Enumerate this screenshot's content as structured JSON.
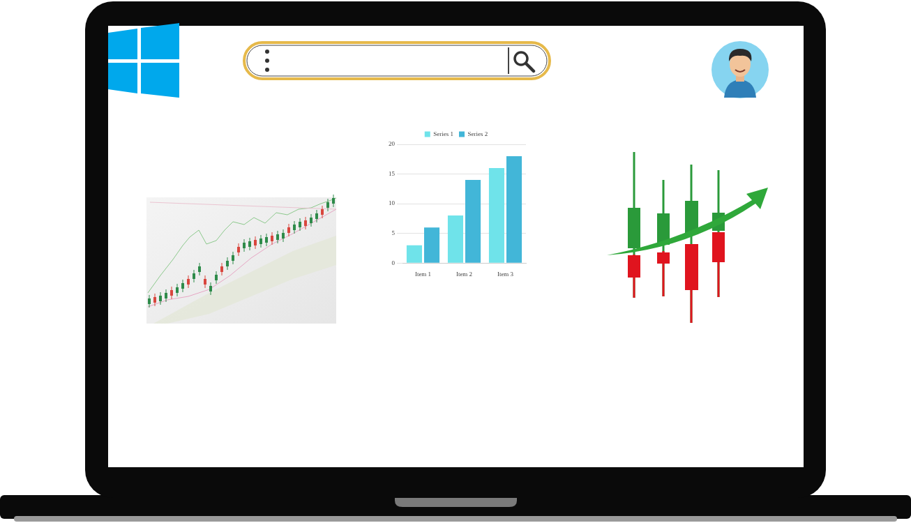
{
  "chart_data": {
    "type": "bar",
    "categories": [
      "Item 1",
      "Item 2",
      "Item 3"
    ],
    "series": [
      {
        "name": "Series 1",
        "color": "#6fe3ea",
        "values": [
          3,
          8,
          16
        ]
      },
      {
        "name": "Series 2",
        "color": "#42b6d8",
        "values": [
          6,
          14,
          18
        ]
      }
    ],
    "ylim": [
      0,
      20
    ],
    "yticks": [
      0,
      5,
      10,
      15,
      20
    ],
    "grid": true,
    "legend": "top"
  }
}
